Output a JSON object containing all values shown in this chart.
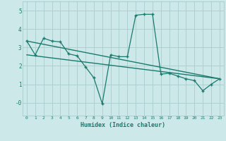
{
  "xlabel": "Humidex (Indice chaleur)",
  "background_color": "#cce8e8",
  "grid_color": "#aacccc",
  "line_color": "#1a7a6e",
  "xlim": [
    -0.5,
    23.5
  ],
  "ylim": [
    -0.7,
    5.5
  ],
  "xticks": [
    0,
    1,
    2,
    3,
    4,
    5,
    6,
    7,
    8,
    9,
    10,
    11,
    12,
    13,
    14,
    15,
    16,
    17,
    18,
    19,
    20,
    21,
    22,
    23
  ],
  "yticks": [
    0,
    1,
    2,
    3,
    4,
    5
  ],
  "ytick_labels": [
    "-0",
    "1",
    "2",
    "3",
    "4",
    "5"
  ],
  "series_main": {
    "x": [
      0,
      1,
      2,
      3,
      4,
      5,
      6,
      7,
      8,
      9,
      10,
      11,
      12,
      13,
      14,
      15,
      16,
      17,
      18,
      19,
      20,
      21,
      22,
      23
    ],
    "y": [
      3.35,
      2.6,
      3.5,
      3.35,
      3.3,
      2.65,
      2.55,
      1.95,
      1.35,
      -0.05,
      2.6,
      2.5,
      2.5,
      4.75,
      4.8,
      4.8,
      1.55,
      1.6,
      1.45,
      1.3,
      1.2,
      0.65,
      1.0,
      1.3
    ]
  },
  "series_trend1": {
    "x": [
      0,
      23
    ],
    "y": [
      3.35,
      1.3
    ]
  },
  "series_trend2": {
    "x": [
      0,
      23
    ],
    "y": [
      2.6,
      1.3
    ]
  }
}
